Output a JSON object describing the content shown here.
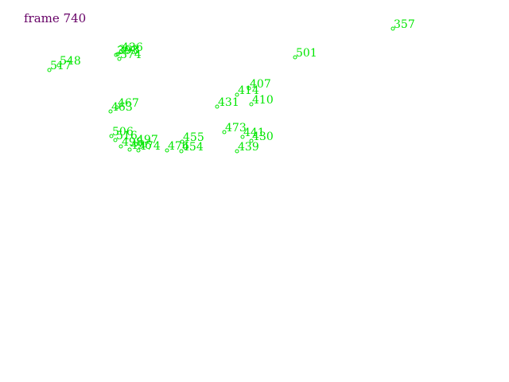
{
  "frame": {
    "label": "frame 740"
  },
  "colors": {
    "label": "#660066",
    "track": "#00e600",
    "background": "#ffffff"
  },
  "tracks": [
    {
      "id": "357"
    },
    {
      "id": "436"
    },
    {
      "id": "398"
    },
    {
      "id": "393"
    },
    {
      "id": "374"
    },
    {
      "id": "501"
    },
    {
      "id": "548"
    },
    {
      "id": "517"
    },
    {
      "id": "407"
    },
    {
      "id": "414"
    },
    {
      "id": "410"
    },
    {
      "id": "431"
    },
    {
      "id": "467"
    },
    {
      "id": "463"
    },
    {
      "id": "473"
    },
    {
      "id": "441"
    },
    {
      "id": "430"
    },
    {
      "id": "439"
    },
    {
      "id": "506"
    },
    {
      "id": "516"
    },
    {
      "id": "497"
    },
    {
      "id": "498"
    },
    {
      "id": "496"
    },
    {
      "id": "474"
    },
    {
      "id": "455"
    },
    {
      "id": "476"
    },
    {
      "id": "454"
    }
  ]
}
